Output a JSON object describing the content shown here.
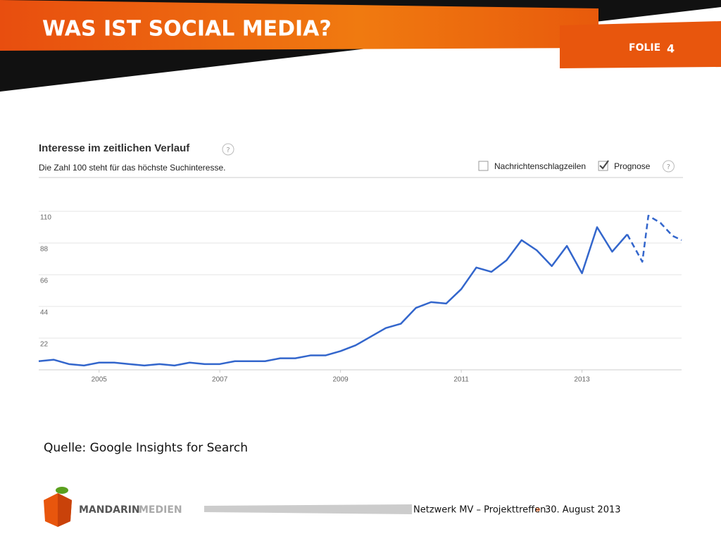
{
  "slide": {
    "title": "WAS IST SOCIAL MEDIA?",
    "folie_label": "FOLIE",
    "folie_number": "4",
    "source": "Quelle: Google Insights for Search",
    "logo": [
      "MANDARIN",
      "MEDIEN"
    ],
    "footer": {
      "event": "Netzwerk MV – Projekttreffen",
      "separator": "»",
      "date": "30. August 2013"
    }
  },
  "chart_data": {
    "type": "line",
    "title": "Interesse im zeitlichen Verlauf",
    "subtitle": "Die Zahl 100 steht für das höchste Suchinteresse.",
    "options": [
      {
        "label": "Nachrichtenschlagzeilen",
        "checked": false
      },
      {
        "label": "Prognose",
        "checked": true
      }
    ],
    "x": [
      2004.0,
      2004.25,
      2004.5,
      2004.75,
      2005.0,
      2005.25,
      2005.5,
      2005.75,
      2006.0,
      2006.25,
      2006.5,
      2006.75,
      2007.0,
      2007.25,
      2007.5,
      2007.75,
      2008.0,
      2008.25,
      2008.5,
      2008.75,
      2009.0,
      2009.25,
      2009.5,
      2009.75,
      2010.0,
      2010.25,
      2010.5,
      2010.75,
      2011.0,
      2011.25,
      2011.5,
      2011.75,
      2012.0,
      2012.25,
      2012.5,
      2012.75,
      2013.0,
      2013.25,
      2013.5,
      2013.75,
      2014.0,
      2014.1,
      2014.3,
      2014.5,
      2014.65
    ],
    "series": [
      {
        "color": "#3366cc",
        "dashed": false,
        "values": [
          6,
          7,
          4,
          3,
          5,
          5,
          4,
          3,
          4,
          3,
          5,
          4,
          4,
          6,
          6,
          6,
          8,
          8,
          10,
          10,
          13,
          17,
          23,
          29,
          32,
          43,
          47,
          46,
          56,
          71,
          68,
          76,
          90,
          83,
          72,
          86,
          67,
          99,
          82,
          94,
          null,
          null,
          null,
          null,
          null
        ]
      },
      {
        "color": "#3366cc",
        "dashed": true,
        "values": [
          null,
          null,
          null,
          null,
          null,
          null,
          null,
          null,
          null,
          null,
          null,
          null,
          null,
          null,
          null,
          null,
          null,
          null,
          null,
          null,
          null,
          null,
          null,
          null,
          null,
          null,
          null,
          null,
          null,
          null,
          null,
          null,
          null,
          null,
          null,
          null,
          null,
          null,
          null,
          94,
          75,
          107,
          102,
          93,
          90
        ]
      }
    ],
    "xlim": [
      2004,
      2014.65
    ],
    "xticks": [
      2005,
      2007,
      2009,
      2011,
      2013
    ],
    "ylim": [
      0,
      110
    ],
    "yticks": [
      22,
      44,
      66,
      88,
      110
    ],
    "grid": true
  }
}
